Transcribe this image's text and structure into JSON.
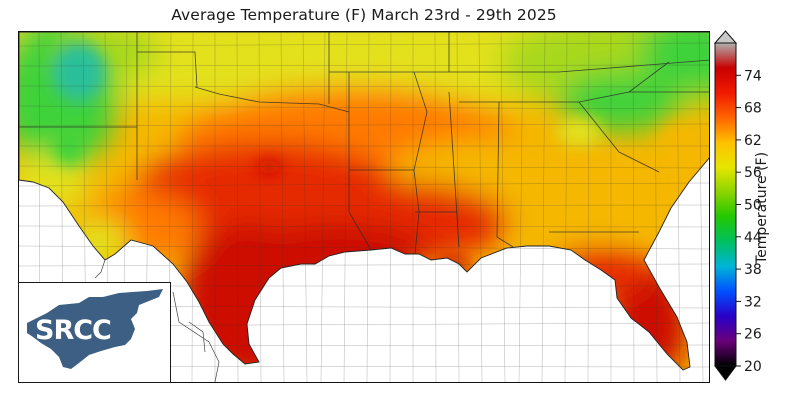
{
  "title": "Average Temperature (F) March 23rd - 29th 2025",
  "logo": {
    "text": "SRCC",
    "color": "#3e5f84"
  },
  "colorbar": {
    "label": "Temperature (F)",
    "ticks": [
      "20",
      "26",
      "32",
      "38",
      "44",
      "50",
      "56",
      "62",
      "68",
      "74"
    ],
    "stops": [
      "#000000",
      "#6a007a",
      "#2a00c8",
      "#0050ff",
      "#00b4d8",
      "#00c060",
      "#22c800",
      "#8cd400",
      "#e6e600",
      "#ffc000",
      "#ff6400",
      "#f01a00",
      "#c80000",
      "#b0b0b0"
    ]
  },
  "map": {
    "region": "Southern United States",
    "colors": {
      "water": "#ffffff",
      "hot": "#cc0b00",
      "red": "#e62a00",
      "orange": "#ff7a00",
      "amber": "#f5b700",
      "yellow": "#e3e11a",
      "lime": "#a8d81c",
      "green": "#3fd23b",
      "teal": "#2abf9a"
    }
  }
}
